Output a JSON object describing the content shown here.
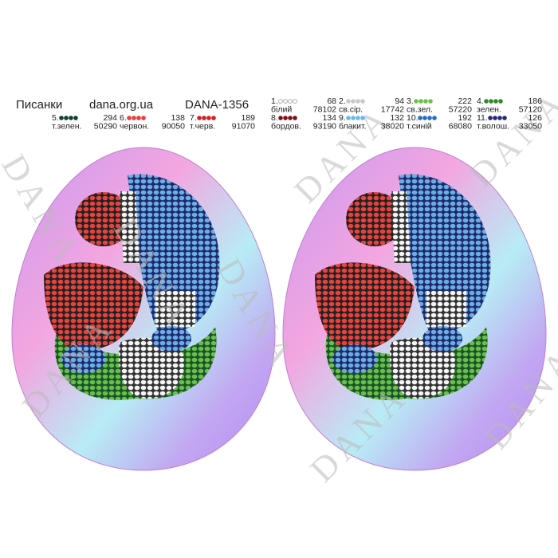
{
  "header": {
    "title": "Писанки",
    "site": "dana.org.ua",
    "code": "DANA-1356"
  },
  "watermark": "DANA",
  "legend": [
    {
      "number": "1.",
      "name": "білий",
      "count": 68,
      "code": "78102",
      "color": "#ffffff"
    },
    {
      "number": "2.",
      "name": "св.сір.",
      "count": 94,
      "code": "17742",
      "color": "#c8c8c8"
    },
    {
      "number": "3.",
      "name": "св.зел.",
      "count": 222,
      "code": "57220",
      "color": "#6cc04a"
    },
    {
      "number": "4.",
      "name": "зелен.",
      "count": 186,
      "code": "57120",
      "color": "#2f8a2a"
    },
    {
      "number": "5.",
      "name": "т.зелен.",
      "count": 294,
      "code": "50290",
      "color": "#12402a"
    },
    {
      "number": "6.",
      "name": "червон.",
      "count": 138,
      "code": "90050",
      "color": "#ee3b3b"
    },
    {
      "number": "7.",
      "name": "т.черв.",
      "count": 189,
      "code": "91070",
      "color": "#d21e24"
    },
    {
      "number": "8.",
      "name": "бордов.",
      "count": 134,
      "code": "93190",
      "color": "#7a1018"
    },
    {
      "number": "9.",
      "name": "блакит.",
      "count": 132,
      "code": "38020",
      "color": "#6ab8ea"
    },
    {
      "number": "10.",
      "name": "т.синій",
      "count": 192,
      "code": "68080",
      "color": "#2a6cc0"
    },
    {
      "number": "11.",
      "name": "т.волош.",
      "count": 126,
      "code": "33050",
      "color": "#262a78"
    }
  ]
}
